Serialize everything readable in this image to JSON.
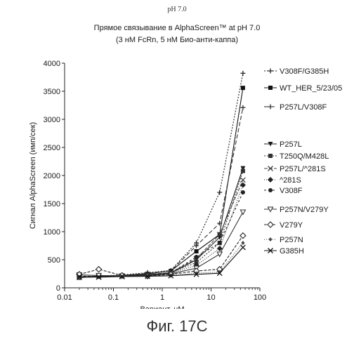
{
  "header": {
    "ph": "pH 7.0",
    "title_line1": "Прямое связывание в AlphaScreen™ at pH 7.0",
    "title_line2": "(3 нМ FcRn, 5 нМ Био-анти-каппа)"
  },
  "figure_label": "Фиг. 17C",
  "chart_data": {
    "type": "line",
    "xscale": "log",
    "xlim": [
      0.01,
      100
    ],
    "ylim": [
      0,
      4000
    ],
    "xticks": [
      0.01,
      0.1,
      1,
      10,
      100
    ],
    "xtick_labels": [
      "0.01",
      "0.1",
      "1",
      "10",
      "100"
    ],
    "yticks": [
      0,
      500,
      1000,
      1500,
      2000,
      2500,
      3000,
      3500,
      4000
    ],
    "ytick_labels": [
      "0",
      "500",
      "1000",
      "1500",
      "2000",
      "2500",
      "3000",
      "3500",
      "4000"
    ],
    "xlabel": "Вариант, нМ",
    "ylabel": "Сигнал AlphaScreen (имп/сек)",
    "grid": false,
    "legend_position": "right",
    "x": [
      0.02,
      0.05,
      0.15,
      0.5,
      1.5,
      5,
      15,
      45
    ],
    "series": [
      {
        "name": "V308F/G385H",
        "color": "#222222",
        "dash": "2,2",
        "marker": "plus",
        "values": [
          190,
          210,
          230,
          270,
          310,
          800,
          1700,
          3820
        ]
      },
      {
        "name": "WT_HER_5/23/05",
        "color": "#111111",
        "dash": "",
        "marker": "square",
        "values": [
          180,
          200,
          220,
          250,
          300,
          650,
          950,
          3560
        ]
      },
      {
        "name": "P257L/V308F",
        "color": "#333333",
        "dash": "6,3",
        "marker": "plus",
        "values": [
          190,
          210,
          220,
          260,
          300,
          750,
          1150,
          3210
        ]
      },
      {
        "name": "P257L",
        "color": "#1a1a1a",
        "dash": "",
        "marker": "tri-down",
        "values": [
          200,
          200,
          210,
          230,
          260,
          500,
          900,
          2130
        ]
      },
      {
        "name": "T250Q/M428L",
        "color": "#333333",
        "dash": "2,2",
        "marker": "square",
        "values": [
          190,
          200,
          215,
          240,
          270,
          450,
          800,
          2080
        ]
      },
      {
        "name": "P257L/^281S",
        "color": "#444444",
        "dash": "5,2",
        "marker": "x",
        "values": [
          185,
          195,
          210,
          240,
          270,
          520,
          950,
          1920
        ]
      },
      {
        "name": "^281S",
        "color": "#222222",
        "dash": "1,2",
        "marker": "diamond",
        "values": [
          200,
          210,
          215,
          235,
          260,
          400,
          700,
          1830
        ]
      },
      {
        "name": "V308F",
        "color": "#222222",
        "dash": "3,3",
        "marker": "dot",
        "values": [
          210,
          200,
          215,
          230,
          265,
          550,
          800,
          1700
        ]
      },
      {
        "name": "P257N/V279Y",
        "color": "#333333",
        "dash": "",
        "marker": "tri-down-open",
        "values": [
          230,
          220,
          210,
          220,
          250,
          350,
          600,
          1350
        ]
      },
      {
        "name": "V279Y",
        "color": "#222222",
        "dash": "4,2",
        "marker": "diamond-open",
        "values": [
          240,
          330,
          220,
          210,
          240,
          300,
          330,
          930
        ]
      },
      {
        "name": "P257N",
        "color": "#444444",
        "dash": "1,2",
        "marker": "diamond-small",
        "values": [
          190,
          190,
          200,
          210,
          220,
          260,
          280,
          800
        ]
      },
      {
        "name": "G385H",
        "color": "#111111",
        "dash": "",
        "marker": "x",
        "values": [
          200,
          190,
          200,
          205,
          215,
          240,
          260,
          720
        ]
      }
    ]
  }
}
